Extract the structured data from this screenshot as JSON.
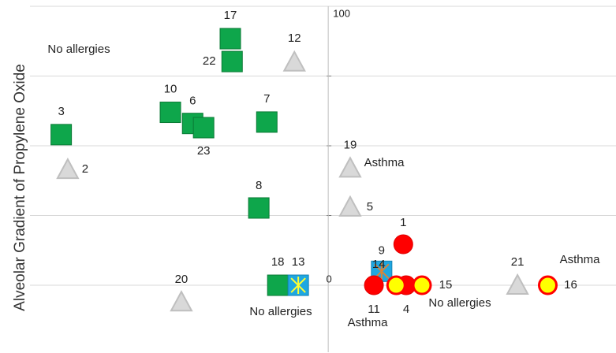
{
  "chart_data": {
    "type": "scatter",
    "y_label": "Alveolar Gradient of Propylene Oxide",
    "xlim": [
      -100,
      97
    ],
    "ylim": [
      -24,
      100
    ],
    "yticks": [
      0,
      100
    ],
    "minor_yticks": [
      25,
      50,
      75
    ],
    "grid": true,
    "points": [
      {
        "label": "17",
        "x": -33,
        "y": 88.4,
        "marker": "square",
        "color": "#0ea64b"
      },
      {
        "label": "22",
        "x": -32.4,
        "y": 80.2,
        "marker": "square",
        "color": "#0ea64b"
      },
      {
        "label": "12",
        "x": -11.4,
        "y": 80,
        "marker": "triangle",
        "color": "#d9d9d9"
      },
      {
        "label": "10",
        "x": -53.2,
        "y": 62,
        "marker": "square",
        "color": "#0ea64b"
      },
      {
        "label": "6",
        "x": -45.7,
        "y": 58,
        "marker": "square",
        "color": "#0ea64b"
      },
      {
        "label": "23",
        "x": -42,
        "y": 56.5,
        "marker": "square",
        "color": "#0ea64b"
      },
      {
        "label": "7",
        "x": -20.7,
        "y": 58.5,
        "marker": "square",
        "color": "#0ea64b"
      },
      {
        "label": "3",
        "x": -90,
        "y": 54,
        "marker": "square",
        "color": "#0ea64b"
      },
      {
        "label": "2",
        "x": -87.8,
        "y": 41.5,
        "marker": "triangle",
        "color": "#d9d9d9"
      },
      {
        "label": "19",
        "x": 7.4,
        "y": 42,
        "marker": "triangle",
        "color": "#d9d9d9"
      },
      {
        "label": "5",
        "x": 7.4,
        "y": 28,
        "marker": "triangle",
        "color": "#d9d9d9"
      },
      {
        "label": "8",
        "x": -23.4,
        "y": 27.7,
        "marker": "square",
        "color": "#0ea64b"
      },
      {
        "label": "1",
        "x": 25.3,
        "y": 14.7,
        "marker": "circle",
        "color": "#ff0000"
      },
      {
        "label": "9",
        "x": 18,
        "y": 5,
        "marker": "starsquare",
        "color": "#1ea7e1"
      },
      {
        "label": "18",
        "x": -17,
        "y": 0,
        "marker": "square",
        "color": "#0ea64b"
      },
      {
        "label": "13",
        "x": -10.1,
        "y": 0,
        "marker": "starsquare",
        "color": "#1ea7e1"
      },
      {
        "label": "20",
        "x": -49.5,
        "y": -6,
        "marker": "triangle",
        "color": "#d9d9d9"
      },
      {
        "label": "11",
        "x": 15.4,
        "y": 0,
        "marker": "circle",
        "color": "#ff0000"
      },
      {
        "label": "4",
        "x": 26.3,
        "y": 0,
        "marker": "circle",
        "color": "#ff0000"
      },
      {
        "label": "14",
        "x": 22.9,
        "y": 0,
        "marker": "ringcircle",
        "color": "#ffff00"
      },
      {
        "label": "15",
        "x": 31.6,
        "y": 0,
        "marker": "ringcircle",
        "color": "#ffff00"
      },
      {
        "label": "21",
        "x": 63.8,
        "y": 0,
        "marker": "triangle",
        "color": "#d9d9d9"
      },
      {
        "label": "16",
        "x": 74,
        "y": 0,
        "marker": "ringcircle",
        "color": "#ffff00"
      }
    ],
    "annotations": [
      "No allergies",
      "Asthma",
      "No allergies",
      "Asthma",
      "No allergies",
      "Asthma"
    ]
  }
}
